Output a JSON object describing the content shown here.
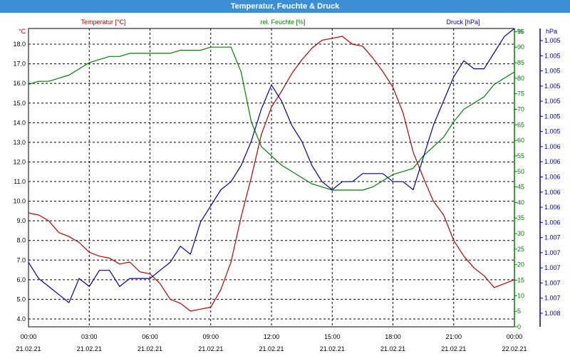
{
  "window": {
    "title": "Temperatur, Feuchte & Druck"
  },
  "colors": {
    "titlebar": "#3d8fd4",
    "temperature": "#c00000",
    "humidity": "#008000",
    "pressure": "#0000aa",
    "grid": "#000000"
  },
  "chart_data": {
    "type": "line",
    "title": "Temperatur, Feuchte & Druck",
    "grid": true,
    "x_ticks": [
      {
        "time": "00:00",
        "date": "21.02.21"
      },
      {
        "time": "03:00",
        "date": "21.02.21"
      },
      {
        "time": "06:00",
        "date": "21.02.21"
      },
      {
        "time": "09:00",
        "date": "21.02.21"
      },
      {
        "time": "12:00",
        "date": "21.02.21"
      },
      {
        "time": "15:00",
        "date": "21.02.21"
      },
      {
        "time": "18:00",
        "date": "21.02.21"
      },
      {
        "time": "21:00",
        "date": "21.02.21"
      },
      {
        "time": "00:00",
        "date": "22.02.21"
      }
    ],
    "x_range_hours": [
      0,
      24
    ],
    "axes": {
      "left": {
        "unit": "°C",
        "ylim": [
          3.6,
          18.8
        ],
        "ticks": [
          "4.0",
          "5.0",
          "6.0",
          "7.0",
          "8.0",
          "9.0",
          "10.0",
          "11.0",
          "12.0",
          "13.0",
          "14.0",
          "15.0",
          "16.0",
          "17.0",
          "18.0"
        ]
      },
      "right1": {
        "unit": "%",
        "ylim": [
          0,
          96
        ],
        "ticks": [
          "0",
          "5",
          "10",
          "15",
          "20",
          "25",
          "30",
          "35",
          "40",
          "45",
          "50",
          "55",
          "60",
          "65",
          "70",
          "75",
          "80",
          "85",
          "90",
          "95"
        ]
      },
      "right2": {
        "unit": "hPa",
        "ylim": [
          1004.5,
          1008.2
        ],
        "ticks": [
          "1.005",
          "1.005",
          "1.005",
          "1.005",
          "1.005",
          "1.005",
          "1.005",
          "1.006",
          "1.006",
          "1.006",
          "1.006",
          "1.006",
          "1.006",
          "1.007",
          "1.007",
          "1.007",
          "1.007",
          "1.007",
          "1.008"
        ]
      }
    },
    "series": [
      {
        "name": "Temperatur [°C]",
        "axis": "left",
        "x": [
          0,
          0.5,
          1,
          1.5,
          2,
          2.5,
          3,
          3.5,
          4,
          4.5,
          5,
          5.5,
          6,
          6.5,
          7,
          7.5,
          8,
          8.5,
          9,
          9.5,
          10,
          10.5,
          11,
          11.5,
          12,
          12.5,
          13,
          13.5,
          14,
          14.5,
          15,
          15.5,
          16,
          16.5,
          17,
          17.5,
          18,
          18.5,
          19,
          19.5,
          20,
          20.5,
          21,
          21.5,
          22,
          22.5,
          23,
          23.5,
          24
        ],
        "values": [
          9.4,
          9.3,
          9.0,
          8.4,
          8.2,
          7.9,
          7.4,
          7.2,
          7.1,
          6.8,
          6.9,
          6.4,
          6.3,
          5.8,
          5.0,
          4.8,
          4.4,
          4.5,
          4.6,
          5.5,
          6.9,
          9.2,
          11.2,
          13.4,
          14.8,
          15.6,
          16.5,
          17.2,
          17.8,
          18.2,
          18.3,
          18.4,
          18.0,
          17.9,
          17.3,
          16.6,
          15.8,
          14.5,
          12.5,
          11.2,
          10.0,
          9.3,
          8.0,
          7.2,
          6.6,
          6.2,
          5.6,
          5.8,
          6.0
        ]
      },
      {
        "name": "rel. Feuchte [%]",
        "axis": "right1",
        "x": [
          0,
          0.5,
          1,
          1.5,
          2,
          2.5,
          3,
          3.5,
          4,
          4.5,
          5,
          5.5,
          6,
          6.5,
          7,
          7.5,
          8,
          8.5,
          9,
          9.5,
          10,
          10.5,
          11,
          11.5,
          12,
          12.5,
          13,
          13.5,
          14,
          14.5,
          15,
          15.5,
          16,
          16.5,
          17,
          17.5,
          18,
          18.5,
          19,
          19.5,
          20,
          20.5,
          21,
          21.5,
          22,
          22.5,
          23,
          23.5,
          24
        ],
        "values": [
          78,
          79,
          79,
          80,
          81,
          83,
          85,
          86,
          87,
          87,
          88,
          88,
          88,
          88,
          88,
          89,
          89,
          89,
          90,
          90,
          90,
          82,
          66,
          58,
          55,
          52,
          50,
          48,
          46,
          45,
          44,
          44,
          44,
          44,
          45,
          47,
          49,
          50,
          51,
          55,
          58,
          61,
          66,
          70,
          72,
          74,
          78,
          80,
          82
        ]
      },
      {
        "name": "Druck [hPa]",
        "axis": "right2",
        "x": [
          0,
          0.5,
          1,
          1.5,
          2,
          2.5,
          3,
          3.5,
          4,
          4.5,
          5,
          5.5,
          6,
          6.5,
          7,
          7.5,
          8,
          8.5,
          9,
          9.5,
          10,
          10.5,
          11,
          11.5,
          12,
          12.5,
          13,
          13.5,
          14,
          14.5,
          15,
          15.5,
          16,
          16.5,
          17,
          17.5,
          18,
          18.5,
          19,
          19.5,
          20,
          20.5,
          21,
          21.5,
          22,
          22.5,
          23,
          23.5,
          24
        ],
        "values": [
          1005.3,
          1005.1,
          1005.0,
          1004.9,
          1004.8,
          1005.1,
          1005.0,
          1005.2,
          1005.2,
          1005.0,
          1005.1,
          1005.1,
          1005.1,
          1005.2,
          1005.3,
          1005.5,
          1005.4,
          1005.8,
          1006.0,
          1006.2,
          1006.3,
          1006.5,
          1006.8,
          1007.2,
          1007.5,
          1007.3,
          1007.0,
          1006.8,
          1006.5,
          1006.3,
          1006.2,
          1006.3,
          1006.3,
          1006.4,
          1006.4,
          1006.4,
          1006.3,
          1006.3,
          1006.2,
          1006.6,
          1007.0,
          1007.3,
          1007.6,
          1007.8,
          1007.7,
          1007.7,
          1007.9,
          1008.1,
          1008.2
        ]
      }
    ]
  }
}
